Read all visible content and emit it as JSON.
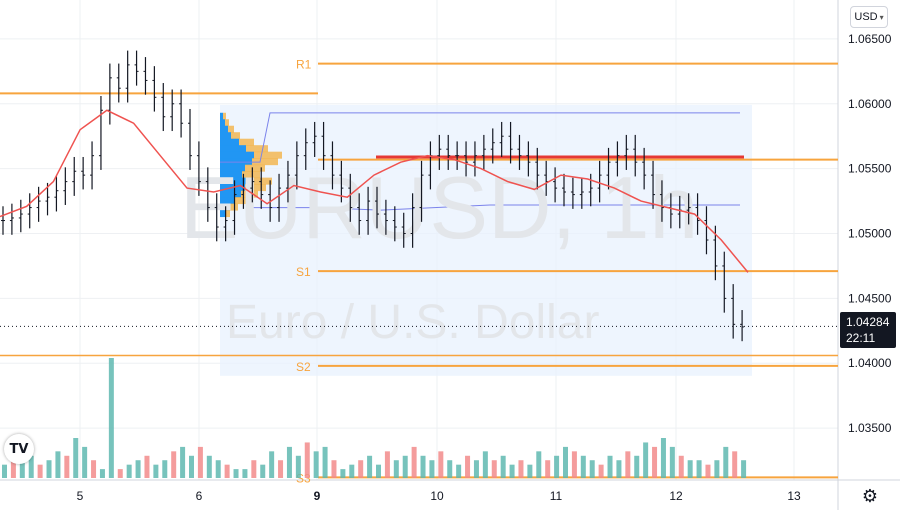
{
  "currency": {
    "label": "USD",
    "chevron": "chevron-down-icon"
  },
  "logo": {
    "icon": "tradingview-logo-icon",
    "text": "TV"
  },
  "settings": {
    "icon": "gear-icon"
  },
  "watermark": {
    "symbol": "EURUSD, 1h",
    "description": "Euro / U.S. Dollar"
  },
  "last_price": {
    "value": "1.04284",
    "countdown": "22:11"
  },
  "colors": {
    "candles": "#131722",
    "ma": "#ef5350",
    "levels": "#f7a43e",
    "poc": "#e53935",
    "va_box": "#7b83eb",
    "profile_up": "#2196f3",
    "profile_down": "#f2b347",
    "vol_up": "#5fb8b0",
    "vol_down": "#f28b8b"
  },
  "chart_data": {
    "type": "candlestick",
    "title": "",
    "x_ticks": [
      "5",
      "6",
      "9",
      "10",
      "11",
      "12",
      "13"
    ],
    "y_ticks": [
      "1.06500",
      "1.06000",
      "1.05500",
      "1.05000",
      "1.04500",
      "1.04000",
      "1.03500"
    ],
    "ylim": [
      1.031,
      1.068
    ],
    "levels": [
      {
        "label": "R1",
        "value": 1.0631
      },
      {
        "label": "",
        "value": 1.0608
      },
      {
        "label": "",
        "value": 1.0557
      },
      {
        "label": "S1",
        "value": 1.0471
      },
      {
        "label": "S2",
        "value": 1.0398
      },
      {
        "label": "S3",
        "value": 1.0312
      }
    ],
    "poc": 1.0559,
    "value_area": {
      "high": 1.0593,
      "low": 1.0522
    },
    "moving_average": [
      1.0513,
      1.0521,
      1.054,
      1.058,
      1.0595,
      1.0585,
      1.056,
      1.0535,
      1.0532,
      1.0537,
      1.0523,
      1.0537,
      1.0532,
      1.0528,
      1.0545,
      1.0555,
      1.056,
      1.0557,
      1.055,
      1.054,
      1.0534,
      1.0545,
      1.0542,
      1.0535,
      1.0525,
      1.052,
      1.0515,
      1.0495,
      1.047
    ],
    "candle_closes": [
      1.051,
      1.0512,
      1.0515,
      1.052,
      1.0525,
      1.0528,
      1.0533,
      1.054,
      1.0548,
      1.0545,
      1.056,
      1.0595,
      1.062,
      1.0612,
      1.063,
      1.0625,
      1.0618,
      1.0605,
      1.059,
      1.06,
      1.0585,
      1.056,
      1.054,
      1.052,
      1.0505,
      1.051,
      1.053,
      1.0535,
      1.054,
      1.053,
      1.052,
      1.0535,
      1.0545,
      1.056,
      1.057,
      1.0575,
      1.056,
      1.0545,
      1.0535,
      1.052,
      1.051,
      1.0525,
      1.0515,
      1.051,
      1.0505,
      1.05,
      1.052,
      1.0545,
      1.056,
      1.0565,
      1.056,
      1.056,
      1.0555,
      1.056,
      1.0565,
      1.057,
      1.0575,
      1.0565,
      1.056,
      1.0555,
      1.0545,
      1.054,
      1.0535,
      1.0532,
      1.053,
      1.0532,
      1.0535,
      1.0545,
      1.0555,
      1.056,
      1.0565,
      1.0555,
      1.0545,
      1.053,
      1.052,
      1.0515,
      1.0518,
      1.052,
      1.051,
      1.0495,
      1.0475,
      1.045,
      1.043,
      1.0428
    ],
    "volume": [
      3,
      4,
      4,
      5,
      3,
      4,
      6,
      5,
      9,
      7,
      4,
      2,
      27,
      2,
      3,
      4,
      5,
      3,
      4,
      6,
      7,
      5,
      7,
      5,
      4,
      3,
      2,
      2,
      4,
      3,
      6,
      4,
      7,
      5,
      8,
      6,
      7,
      4,
      2,
      3,
      4,
      5,
      3,
      6,
      4,
      5,
      7,
      5,
      4,
      6,
      4,
      3,
      5,
      4,
      6,
      4,
      5,
      3,
      4,
      3,
      6,
      4,
      5,
      7,
      6,
      5,
      4,
      3,
      5,
      4,
      6,
      5,
      8,
      7,
      9,
      7,
      5,
      4,
      4,
      3,
      4,
      7,
      6,
      4
    ]
  }
}
